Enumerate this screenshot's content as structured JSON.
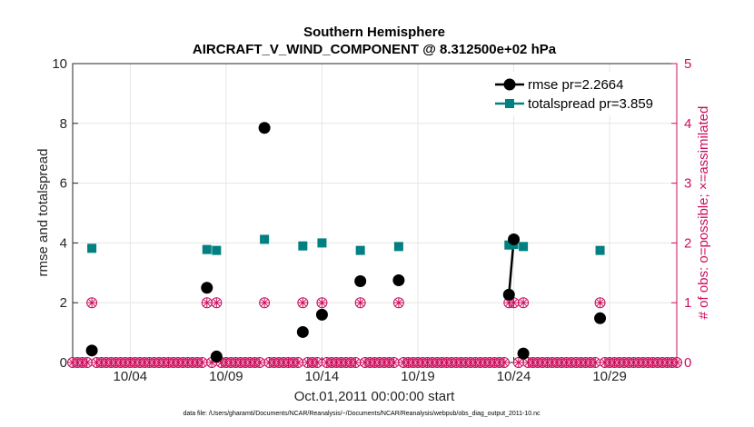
{
  "chart_data": {
    "type": "line",
    "title": "Southern Hemisphere",
    "subtitle": "AIRCRAFT_V_WIND_COMPONENT @ 8.312500e+02 hPa",
    "xlabel": "Oct.01,2011 00:00:00 start",
    "ylabel": "rmse and totalspread",
    "ylabel_right": "# of obs: o=possible; ×=assimilated",
    "xlim": [
      0,
      31.5
    ],
    "ylim": [
      0,
      10
    ],
    "ylim_right": [
      0,
      5
    ],
    "x_tick_values": [
      3,
      8,
      13,
      18,
      23,
      28
    ],
    "x_tick_labels": [
      "10/04",
      "10/09",
      "10/14",
      "10/19",
      "10/24",
      "10/29"
    ],
    "y_ticks": [
      "0",
      "2",
      "4",
      "6",
      "8",
      "10"
    ],
    "y_ticks_right": [
      "0",
      "1",
      "2",
      "3",
      "4",
      "5"
    ],
    "grid": true,
    "legend_position": "top-right",
    "series": [
      {
        "name": "rmse pr=2.2664",
        "color": "#000000",
        "marker": "circle",
        "points": [
          [
            1,
            0.4
          ],
          [
            7,
            2.5
          ],
          [
            7.5,
            0.2
          ],
          [
            10,
            7.85
          ],
          [
            12,
            1.02
          ],
          [
            13,
            1.6
          ],
          [
            15,
            2.72
          ],
          [
            17,
            2.75
          ],
          [
            22.75,
            2.27
          ],
          [
            23,
            4.12
          ],
          [
            23.5,
            0.3
          ],
          [
            27.5,
            1.48
          ]
        ],
        "segments": [
          [
            8,
            9
          ]
        ]
      },
      {
        "name": "totalspread pr=3.859",
        "color": "#008080",
        "marker": "square",
        "points": [
          [
            1,
            3.82
          ],
          [
            7,
            3.78
          ],
          [
            7.5,
            3.75
          ],
          [
            10,
            4.12
          ],
          [
            12,
            3.9
          ],
          [
            13,
            4.0
          ],
          [
            15,
            3.75
          ],
          [
            17,
            3.88
          ],
          [
            22.75,
            3.93
          ],
          [
            23,
            3.95
          ],
          [
            23.5,
            3.88
          ],
          [
            27.5,
            3.75
          ]
        ],
        "segments": [
          [
            8,
            9
          ]
        ]
      },
      {
        "name": "# obs possible",
        "axis": "right",
        "color": "#cc0e5d",
        "marker": "circle-open",
        "x_step": 0.25,
        "x_range": [
          0,
          31.5
        ],
        "nonzero": [
          [
            1,
            1
          ],
          [
            7,
            1
          ],
          [
            7.5,
            1
          ],
          [
            10,
            1
          ],
          [
            12,
            1
          ],
          [
            13,
            1
          ],
          [
            15,
            1
          ],
          [
            17,
            1
          ],
          [
            22.75,
            1
          ],
          [
            23,
            1
          ],
          [
            23.5,
            1
          ],
          [
            27.5,
            1
          ]
        ]
      },
      {
        "name": "# obs assimilated",
        "axis": "right",
        "color": "#cc0e5d",
        "marker": "x",
        "x_step": 0.25,
        "x_range": [
          0,
          31.5
        ],
        "nonzero": [
          [
            1,
            1
          ],
          [
            7,
            1
          ],
          [
            7.5,
            1
          ],
          [
            10,
            1
          ],
          [
            12,
            1
          ],
          [
            13,
            1
          ],
          [
            15,
            1
          ],
          [
            17,
            1
          ],
          [
            22.75,
            1
          ],
          [
            23,
            1
          ],
          [
            23.5,
            1
          ],
          [
            27.5,
            1
          ]
        ]
      }
    ],
    "footnote": "data file: /Users/gharamti/Documents/NCAR/Reanalysis/~/Documents/NCAR/Reanalysis/webpub/obs_diag_output_2011-10.nc"
  }
}
